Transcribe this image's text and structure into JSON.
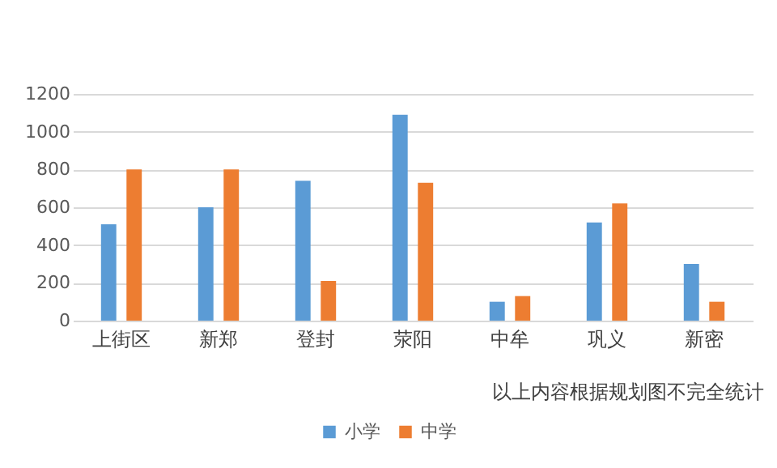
{
  "chart_data": {
    "type": "bar",
    "categories": [
      "上街区",
      "新郑",
      "登封",
      "荥阳",
      "中牟",
      "巩义",
      "新密"
    ],
    "series": [
      {
        "name": "小学",
        "color": "#5b9bd5",
        "values": [
          510,
          600,
          740,
          1090,
          100,
          520,
          300
        ]
      },
      {
        "name": "中学",
        "color": "#ed7d31",
        "values": [
          800,
          800,
          210,
          730,
          130,
          620,
          100
        ]
      }
    ],
    "ylim": [
      0,
      1200
    ],
    "yticks": [
      0,
      200,
      400,
      600,
      800,
      1000,
      1200
    ],
    "grid": "y",
    "legend": "bottom",
    "annotations": [
      "以上内容根据规划图不完全统计"
    ]
  }
}
